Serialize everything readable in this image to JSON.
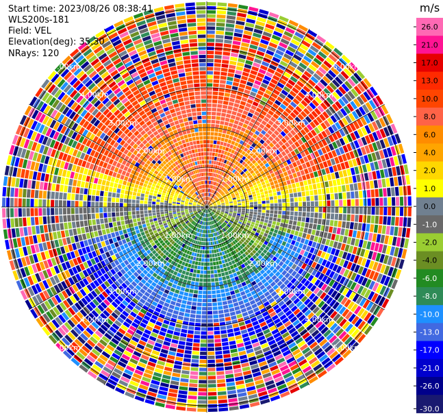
{
  "info": {
    "start_time": "Start time: 2023/08/26 08:38:41",
    "instrument": "WLS200s-181",
    "field": "Field: VEL",
    "elevation": "Elevation(deg): 35.30",
    "nrays": "NRays: 120"
  },
  "chart_data": {
    "type": "ppi",
    "field": "VEL",
    "nrays": 120,
    "range_ring_labels": [
      "1.00km",
      "2.00km",
      "3.00km",
      "4.00km",
      "5.00km"
    ],
    "range_rings_km": [
      1,
      2,
      3,
      4,
      5
    ],
    "colorbar": {
      "unit": "m/s",
      "tick_labels": [
        "26.0",
        "21.0",
        "17.0",
        "13.0",
        "10.0",
        "8.0",
        "6.0",
        "4.0",
        "2.0",
        "1.0",
        "0.0",
        "-1.0",
        "-2.0",
        "-4.0",
        "-6.0",
        "-8.0",
        "-10.0",
        "-13.0",
        "-17.0",
        "-21.0",
        "-26.0",
        "-30.0"
      ],
      "colors": [
        "#ff69b4",
        "#ff1493",
        "#e60000",
        "#ff2a00",
        "#ff4500",
        "#ff6347",
        "#ff8c00",
        "#ffa500",
        "#ffd700",
        "#ffff00",
        "#708090",
        "#696969",
        "#9acd32",
        "#6b8e23",
        "#228b22",
        "#2e8b57",
        "#1e90ff",
        "#4169e1",
        "#0000ff",
        "#0000cd",
        "#00008b",
        "#191970"
      ]
    }
  }
}
